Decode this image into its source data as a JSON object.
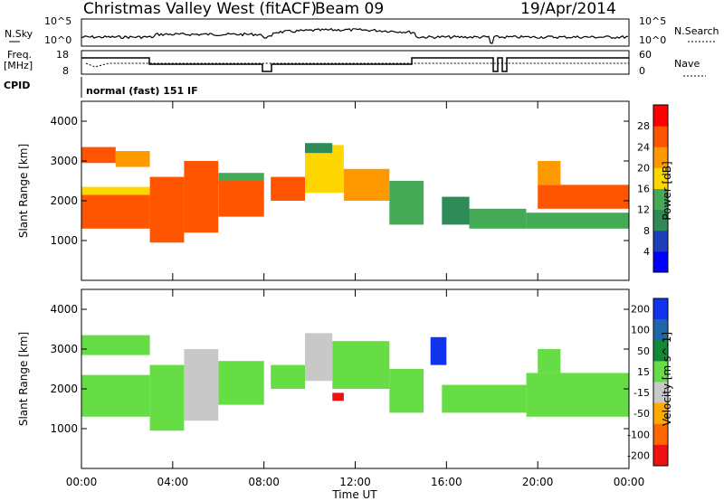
{
  "header": {
    "station": "Christmas Valley West (fitACF)",
    "beam": "Beam 09",
    "date": "19/Apr/2014"
  },
  "top_panels": {
    "nsky_label": "N.Sky",
    "nsearch_label": "N.Search",
    "noise_ticks": [
      "10^5",
      "10^0"
    ],
    "freq_label_1": "Freq.",
    "freq_label_2": "[MHz]",
    "freq_ticks": [
      "18",
      "8"
    ],
    "nave_label": "Nave",
    "nave_ticks": [
      "60",
      "0"
    ],
    "cpid_label": "CPID",
    "cpid_text": "normal (fast) 151 IF"
  },
  "colors": {
    "power_scale": [
      "#0000ff",
      "#1f3fb8",
      "#2e8b57",
      "#44aa55",
      "#ffd700",
      "#ff9900",
      "#ff5500",
      "#ff0000"
    ],
    "velocity_scale": [
      "#1133ee",
      "#2266aa",
      "#118833",
      "#66dd44",
      "#c8c8c8",
      "#ffaa00",
      "#ff6600",
      "#ee1111"
    ],
    "ground_scatter": "#c8c8c8"
  },
  "chart_data": [
    {
      "type": "heatmap",
      "name": "Power",
      "xlabel": "Time UT",
      "ylabel": "Slant Range [km]",
      "x_ticks": [
        "00:00",
        "04:00",
        "08:00",
        "12:00",
        "16:00",
        "20:00",
        "00:00"
      ],
      "xlim_hours": [
        0,
        24
      ],
      "y_ticks": [
        1000,
        2000,
        3000,
        4000
      ],
      "ylim": [
        0,
        4500
      ],
      "colorbar_label": "Power [dB]",
      "colorbar_ticks": [
        4,
        8,
        12,
        16,
        20,
        24,
        28
      ],
      "colorbar_range": [
        0,
        32
      ],
      "scatter_regions": [
        {
          "t0": 0.0,
          "t1": 3.0,
          "r0": 1300,
          "r1": 2150,
          "v": 26
        },
        {
          "t0": 0.0,
          "t1": 3.0,
          "r0": 2150,
          "r1": 2350,
          "v": 18
        },
        {
          "t0": 0.0,
          "t1": 1.5,
          "r0": 2950,
          "r1": 3350,
          "v": 24
        },
        {
          "t0": 1.5,
          "t1": 3.0,
          "r0": 2850,
          "r1": 3250,
          "v": 22
        },
        {
          "t0": 3.0,
          "t1": 4.5,
          "r0": 950,
          "r1": 2600,
          "v": 26
        },
        {
          "t0": 4.5,
          "t1": 6.0,
          "r0": 1200,
          "r1": 3000,
          "v": 24
        },
        {
          "t0": 6.0,
          "t1": 8.0,
          "r0": 1600,
          "r1": 2500,
          "v": 24
        },
        {
          "t0": 6.0,
          "t1": 8.0,
          "r0": 2500,
          "r1": 2700,
          "v": 14
        },
        {
          "t0": 8.3,
          "t1": 9.8,
          "r0": 2000,
          "r1": 2600,
          "v": 26
        },
        {
          "t0": 9.8,
          "t1": 11.5,
          "r0": 2200,
          "r1": 3400,
          "v": 18
        },
        {
          "t0": 9.8,
          "t1": 11.0,
          "r0": 3200,
          "r1": 3450,
          "v": 10
        },
        {
          "t0": 11.5,
          "t1": 13.5,
          "r0": 2000,
          "r1": 2800,
          "v": 20
        },
        {
          "t0": 13.5,
          "t1": 15.0,
          "r0": 1400,
          "r1": 2500,
          "v": 14
        },
        {
          "t0": 15.8,
          "t1": 17.0,
          "r0": 1400,
          "r1": 2100,
          "v": 8
        },
        {
          "t0": 17.0,
          "t1": 19.5,
          "r0": 1300,
          "r1": 1800,
          "v": 12
        },
        {
          "t0": 19.5,
          "t1": 24.0,
          "r0": 1300,
          "r1": 1700,
          "v": 14
        },
        {
          "t0": 20.0,
          "t1": 24.0,
          "r0": 1800,
          "r1": 2400,
          "v": 24
        },
        {
          "t0": 20.0,
          "t1": 21.0,
          "r0": 2400,
          "r1": 3000,
          "v": 20
        }
      ]
    },
    {
      "type": "heatmap",
      "name": "Velocity",
      "xlabel": "Time UT",
      "ylabel": "Slant Range [km]",
      "x_ticks": [
        "00:00",
        "04:00",
        "08:00",
        "12:00",
        "16:00",
        "20:00",
        "00:00"
      ],
      "xlim_hours": [
        0,
        24
      ],
      "y_ticks": [
        1000,
        2000,
        3000,
        4000
      ],
      "ylim": [
        0,
        4500
      ],
      "colorbar_label": "Velocity [m s^-1]",
      "colorbar_ticks": [
        200,
        100,
        50,
        15,
        -15,
        -50,
        -100,
        -200
      ],
      "colorbar_range": [
        -250,
        250
      ],
      "scatter_regions": [
        {
          "t0": 0.0,
          "t1": 3.0,
          "r0": 1300,
          "r1": 2350,
          "v": 0
        },
        {
          "t0": 0.0,
          "t1": 3.0,
          "r0": 2850,
          "r1": 3350,
          "v": 0
        },
        {
          "t0": 3.0,
          "t1": 4.5,
          "r0": 950,
          "r1": 2600,
          "v": 0
        },
        {
          "t0": 4.5,
          "t1": 6.0,
          "r0": 1200,
          "r1": 3000,
          "v": -60
        },
        {
          "t0": 6.0,
          "t1": 8.0,
          "r0": 1600,
          "r1": 2700,
          "v": 0
        },
        {
          "t0": 8.3,
          "t1": 9.8,
          "r0": 2000,
          "r1": 2600,
          "v": 0
        },
        {
          "t0": 9.8,
          "t1": 11.0,
          "r0": 2200,
          "r1": 3400,
          "v": -60
        },
        {
          "t0": 11.0,
          "t1": 13.5,
          "r0": 2000,
          "r1": 3200,
          "v": 30
        },
        {
          "t0": 13.5,
          "t1": 15.0,
          "r0": 1400,
          "r1": 2500,
          "v": 0
        },
        {
          "t0": 15.3,
          "t1": 16.0,
          "r0": 2600,
          "r1": 3300,
          "v": 200
        },
        {
          "t0": 15.8,
          "t1": 19.5,
          "r0": 1400,
          "r1": 2100,
          "v": 0
        },
        {
          "t0": 19.5,
          "t1": 24.0,
          "r0": 1300,
          "r1": 2400,
          "v": 0
        },
        {
          "t0": 20.0,
          "t1": 21.0,
          "r0": 2400,
          "r1": 3000,
          "v": 0
        },
        {
          "t0": 11.0,
          "t1": 11.5,
          "r0": 1700,
          "r1": 1900,
          "v": -200
        }
      ]
    }
  ]
}
